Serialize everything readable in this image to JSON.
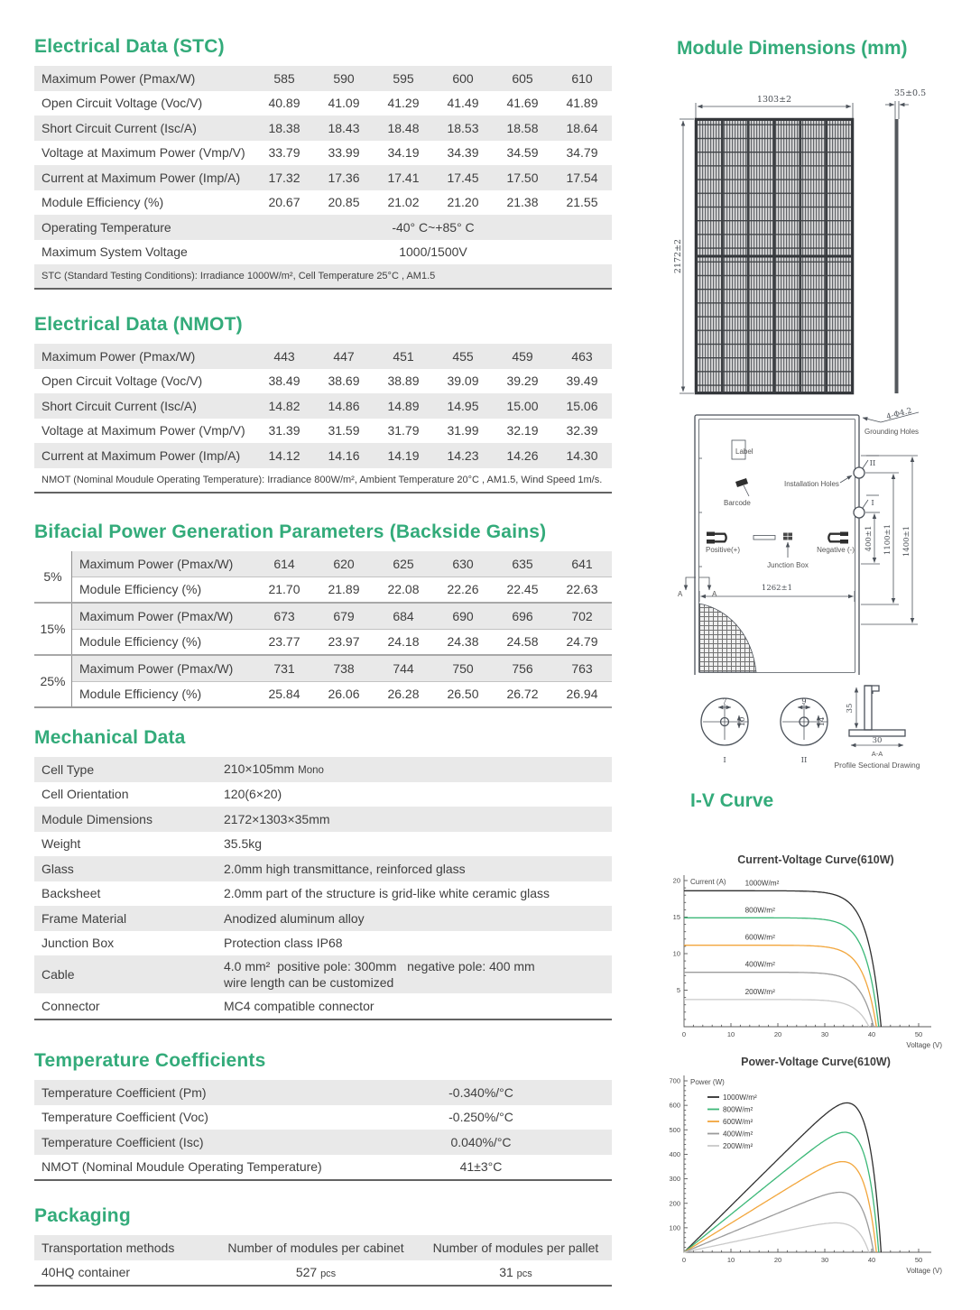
{
  "colors": {
    "accent_green": "#33ab7a",
    "row_shade": "#e9e9e9",
    "text": "#3f3f3f",
    "table_border": "#636363",
    "drawing_stroke": "#4c525a"
  },
  "electrical_stc": {
    "title": "Electrical Data (STC)",
    "rows": [
      {
        "label": "Maximum Power (Pmax/W)",
        "values": [
          "585",
          "590",
          "595",
          "600",
          "605",
          "610"
        ]
      },
      {
        "label": "Open Circuit Voltage (Voc/V)",
        "values": [
          "40.89",
          "41.09",
          "41.29",
          "41.49",
          "41.69",
          "41.89"
        ]
      },
      {
        "label": "Short Circuit Current (Isc/A)",
        "values": [
          "18.38",
          "18.43",
          "18.48",
          "18.53",
          "18.58",
          "18.64"
        ]
      },
      {
        "label": "Voltage at Maximum Power (Vmp/V)",
        "values": [
          "33.79",
          "33.99",
          "34.19",
          "34.39",
          "34.59",
          "34.79"
        ]
      },
      {
        "label": "Current at Maximum Power  (Imp/A)",
        "values": [
          "17.32",
          "17.36",
          "17.41",
          "17.45",
          "17.50",
          "17.54"
        ]
      },
      {
        "label": "Module Efficiency (%)",
        "values": [
          "20.67",
          "20.85",
          "21.02",
          "21.20",
          "21.38",
          "21.55"
        ]
      }
    ],
    "span_rows": [
      {
        "label": "Operating Temperature",
        "value": "-40° C~+85° C"
      },
      {
        "label": "Maximum System Voltage",
        "value": "1000/1500V"
      }
    ],
    "footnote": "STC (Standard Testing Conditions): Irradiance 1000W/m², Cell Temperature 25°C , AM1.5"
  },
  "electrical_nmot": {
    "title": "Electrical Data (NMOT)",
    "rows": [
      {
        "label": "Maximum Power (Pmax/W)",
        "values": [
          "443",
          "447",
          "451",
          "455",
          "459",
          "463"
        ]
      },
      {
        "label": "Open Circuit Voltage (Voc/V)",
        "values": [
          "38.49",
          "38.69",
          "38.89",
          "39.09",
          "39.29",
          "39.49"
        ]
      },
      {
        "label": "Short Circuit Current (Isc/A)",
        "values": [
          "14.82",
          "14.86",
          "14.89",
          "14.95",
          "15.00",
          "15.06"
        ]
      },
      {
        "label": "Voltage at Maximum Power (Vmp/V)",
        "values": [
          "31.39",
          "31.59",
          "31.79",
          "31.99",
          "32.19",
          "32.39"
        ]
      },
      {
        "label": "Current at Maximum Power  (Imp/A)",
        "values": [
          "14.12",
          "14.16",
          "14.19",
          "14.23",
          "14.26",
          "14.30"
        ]
      }
    ],
    "span_rows": [],
    "footnote": "NMOT (Nominal Moudule Operating Temperature): Irradiance 800W/m², Ambient Temperature 20°C , AM1.5, Wind Speed 1m/s."
  },
  "bifacial": {
    "title": "Bifacial Power Generation Parameters (Backside Gains)",
    "groups": [
      {
        "gain": "5%",
        "rows": [
          {
            "label": "Maximum Power (Pmax/W)",
            "values": [
              "614",
              "620",
              "625",
              "630",
              "635",
              "641"
            ]
          },
          {
            "label": "Module Efficiency (%)",
            "values": [
              "21.70",
              "21.89",
              "22.08",
              "22.26",
              "22.45",
              "22.63"
            ]
          }
        ]
      },
      {
        "gain": "15%",
        "rows": [
          {
            "label": "Maximum Power (Pmax/W)",
            "values": [
              "673",
              "679",
              "684",
              "690",
              "696",
              "702"
            ]
          },
          {
            "label": "Module Efficiency (%)",
            "values": [
              "23.77",
              "23.97",
              "24.18",
              "24.38",
              "24.58",
              "24.79"
            ]
          }
        ]
      },
      {
        "gain": "25%",
        "rows": [
          {
            "label": "Maximum Power (Pmax/W)",
            "values": [
              "731",
              "738",
              "744",
              "750",
              "756",
              "763"
            ]
          },
          {
            "label": "Module Efficiency (%)",
            "values": [
              "25.84",
              "26.06",
              "26.28",
              "26.50",
              "26.72",
              "26.94"
            ]
          }
        ]
      }
    ]
  },
  "mechanical": {
    "title": "Mechanical Data",
    "rows": [
      {
        "label": "Cell Type",
        "value": "210×105mm",
        "small": "Mono"
      },
      {
        "label": "Cell Orientation",
        "value": "120(6×20)"
      },
      {
        "label": "Module Dimensions",
        "value": "2172×1303×35mm"
      },
      {
        "label": "Weight",
        "value": "35.5kg"
      },
      {
        "label": "Glass",
        "value": "2.0mm high transmittance, reinforced glass"
      },
      {
        "label": "Backsheet",
        "value": "2.0mm part of the structure is grid-like white ceramic glass"
      },
      {
        "label": "Frame Material",
        "value": "Anodized aluminum alloy"
      },
      {
        "label": "Junction Box",
        "value": "Protection class IP68"
      },
      {
        "label": "Cable",
        "value": "4.0 mm²  positive pole: 300mm   negative pole: 400 mm",
        "value2": "wire length can be customized"
      },
      {
        "label": "Connector",
        "value": "MC4 compatible connector"
      }
    ]
  },
  "temperature": {
    "title": "Temperature Coefficients",
    "rows": [
      {
        "label": "Temperature Coefficient (Pm)",
        "value": "-0.340%/°C"
      },
      {
        "label": "Temperature Coefficient (Voc)",
        "value": "-0.250%/°C"
      },
      {
        "label": "Temperature Coefficient (Isc)",
        "value": "0.040%/°C"
      },
      {
        "label": "NMOT (Nominal Moudule Operating Temperature)",
        "value": "41±3°C"
      }
    ]
  },
  "packaging": {
    "title": "Packaging",
    "headers": [
      "Transportation methods",
      "Number of modules per cabinet",
      "Number of modules per pallet"
    ],
    "row": {
      "method": "40HQ container",
      "cabinet_qty": "527",
      "cabinet_unit": "pcs",
      "pallet_qty": "31",
      "pallet_unit": "pcs"
    }
  },
  "module_dimensions": {
    "title": "Module Dimensions (mm)",
    "front": {
      "width": "1303±2",
      "height": "2172±2",
      "thickness": "35±0.5"
    },
    "back": {
      "hole_note": "4-Φ4.2",
      "grounding": "Grounding Holes",
      "label_box": "Label",
      "barcode": "Barcode",
      "installation": "Installation Holes",
      "positive": "Positive(+)",
      "junction": "Junction Box",
      "negative": "Negative (-)",
      "dim_400": "400±1",
      "dim_1100": "1100±1",
      "dim_1400": "1400±1",
      "dim_1262": "1262±1",
      "section_a": "A",
      "mark_i": "I",
      "mark_ii": "II"
    },
    "details": {
      "c1_width": "7",
      "c1_height": "10",
      "c1_label": "I",
      "c2_width": "9",
      "c2_height": "14",
      "c2_label": "II",
      "profile_height": "35",
      "profile_width": "30",
      "section": "A-A",
      "caption": "Profile Sectional Drawing"
    }
  },
  "iv_section": {
    "title": "I-V Curve"
  },
  "chart_data": [
    {
      "type": "line",
      "title": "Current-Voltage Curve(610W)",
      "xlabel": "Voltage (V)",
      "ylabel": "Current (A)",
      "xlim": [
        0,
        50
      ],
      "ylim": [
        0,
        20
      ],
      "x_major": 10,
      "x_minor": 2,
      "y_major": 5,
      "y_minor": 1,
      "grid": false,
      "legend_position": "inline-left",
      "series": [
        {
          "name": "1000W/m²",
          "color": "#2f2f2f",
          "isc": 18.6,
          "voc": 42.0
        },
        {
          "name": "800W/m²",
          "color": "#3cb878",
          "isc": 14.9,
          "voc": 41.5
        },
        {
          "name": "600W/m²",
          "color": "#f2a63c",
          "isc": 11.15,
          "voc": 41.0
        },
        {
          "name": "400W/m²",
          "color": "#9b9b9b",
          "isc": 7.45,
          "voc": 40.4
        },
        {
          "name": "200W/m²",
          "color": "#c9c9c9",
          "isc": 3.72,
          "voc": 39.4
        }
      ]
    },
    {
      "type": "line",
      "title": "Power-Voltage Curve(610W)",
      "xlabel": "Voltage (V)",
      "ylabel": "Power (W)",
      "xlim": [
        0,
        50
      ],
      "ylim": [
        0,
        700
      ],
      "x_major": 10,
      "x_minor": 2,
      "y_major": 100,
      "y_minor": 20,
      "grid": false,
      "legend_position": "upper-left",
      "series": [
        {
          "name": "1000W/m²",
          "color": "#2f2f2f",
          "isc": 18.6,
          "voc": 42.0,
          "pmax": 610,
          "vmp": 34
        },
        {
          "name": "800W/m²",
          "color": "#3cb878",
          "isc": 14.9,
          "voc": 41.5,
          "pmax": 490,
          "vmp": 34
        },
        {
          "name": "600W/m²",
          "color": "#f2a63c",
          "isc": 11.15,
          "voc": 41.0,
          "pmax": 370,
          "vmp": 34
        },
        {
          "name": "400W/m²",
          "color": "#9b9b9b",
          "isc": 7.45,
          "voc": 40.4,
          "pmax": 245,
          "vmp": 34
        },
        {
          "name": "200W/m²",
          "color": "#c9c9c9",
          "isc": 3.72,
          "voc": 39.4,
          "pmax": 120,
          "vmp": 33
        }
      ]
    }
  ]
}
